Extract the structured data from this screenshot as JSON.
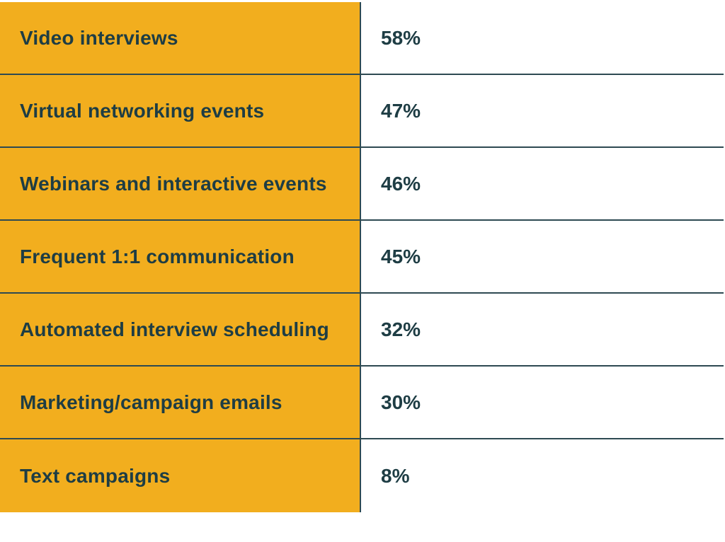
{
  "chart_data": {
    "type": "table",
    "rows": [
      {
        "label": "Video interviews",
        "value": "58%"
      },
      {
        "label": "Virtual networking events",
        "value": "47%"
      },
      {
        "label": "Webinars and interactive events",
        "value": "46%"
      },
      {
        "label": "Frequent 1:1 communication",
        "value": "45%"
      },
      {
        "label": "Automated interview scheduling",
        "value": "32%"
      },
      {
        "label": "Marketing/campaign emails",
        "value": "30%"
      },
      {
        "label": "Text campaigns",
        "value": "8%"
      }
    ]
  },
  "colors": {
    "label_background": "#f2ae1e",
    "text": "#1e3d44",
    "rule": "#2e4a52"
  }
}
